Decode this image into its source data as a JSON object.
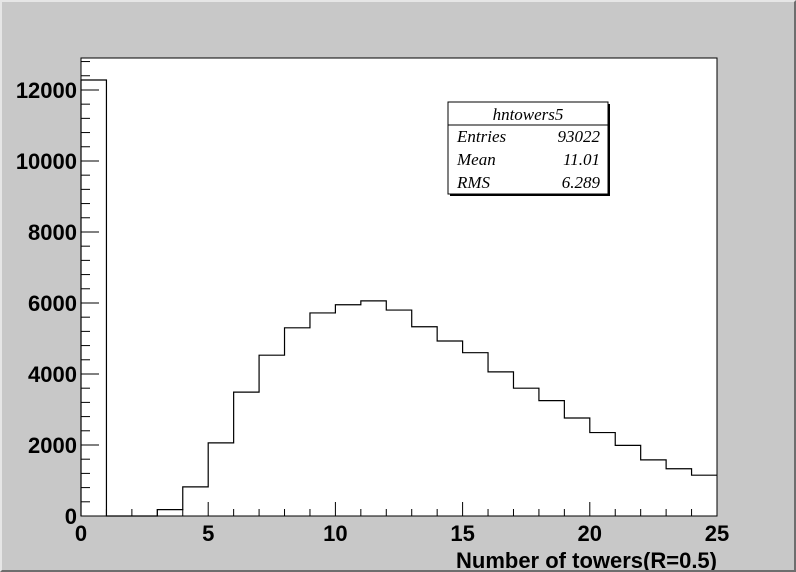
{
  "chart_data": {
    "type": "bar",
    "histogram_name": "hntowers5",
    "xlabel": "Number of towers(R=0.5)",
    "ylabel": "",
    "xlim": [
      0,
      25
    ],
    "ylim": [
      0,
      12900
    ],
    "x_ticks": [
      "0",
      "5",
      "10",
      "15",
      "20",
      "25"
    ],
    "y_ticks": [
      "0",
      "2000",
      "4000",
      "6000",
      "8000",
      "10000",
      "12000"
    ],
    "bin_edges": [
      0,
      1,
      2,
      3,
      4,
      5,
      6,
      7,
      8,
      9,
      10,
      11,
      12,
      13,
      14,
      15,
      16,
      17,
      18,
      19,
      20,
      21,
      22,
      23,
      24,
      25
    ],
    "values": [
      12280,
      0,
      0,
      180,
      820,
      2060,
      3490,
      4530,
      5300,
      5720,
      5950,
      6060,
      5800,
      5330,
      4930,
      4600,
      4060,
      3600,
      3250,
      2760,
      2350,
      1990,
      1580,
      1330,
      1150
    ],
    "grid": false,
    "legend": "none",
    "stats": {
      "title": "hntowers5",
      "rows": [
        {
          "label": "Entries",
          "value": "93022"
        },
        {
          "label": "Mean",
          "value": "11.01"
        },
        {
          "label": "RMS",
          "value": "6.289"
        }
      ]
    }
  }
}
